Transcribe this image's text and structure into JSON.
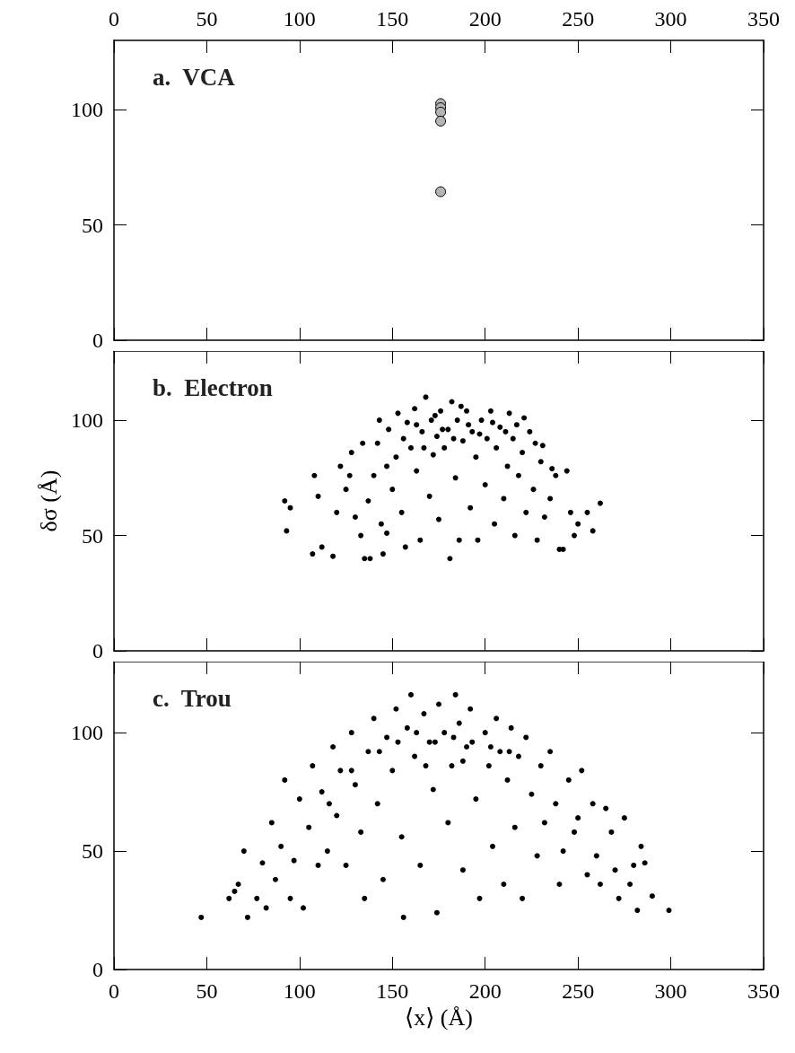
{
  "chart_data": [
    {
      "type": "scatter",
      "title": "a.  VCA",
      "marker": "circle",
      "xlim": [
        0,
        350
      ],
      "xticks": [
        0,
        50,
        100,
        150,
        200,
        250,
        300,
        350
      ],
      "x2lim": [
        0,
        350
      ],
      "x2ticks": [
        0,
        50,
        100,
        150,
        200,
        250,
        300,
        350
      ],
      "ylim": [
        0,
        130
      ],
      "yticks": [
        0,
        50,
        100
      ],
      "tick_labels": "y",
      "series": [
        {
          "color": "#b4b4b4",
          "x": [
            176,
            176,
            176,
            176,
            176
          ],
          "values": [
            102.6,
            100.8,
            98.9,
            95,
            64.4
          ]
        }
      ]
    },
    {
      "type": "scatter",
      "title": "b.  Electron",
      "ylabel": "δσ (Å)",
      "marker": "circle",
      "xlim": [
        0,
        350
      ],
      "xticks": [
        0,
        50,
        100,
        150,
        200,
        250,
        300,
        350
      ],
      "ylim": [
        0,
        130
      ],
      "yticks": [
        0,
        50,
        100
      ],
      "tick_labels": "y",
      "series": [
        {
          "color": "#000000",
          "x": [
            92,
            93,
            95,
            107,
            108,
            118,
            110,
            112,
            122,
            125,
            128,
            130,
            133,
            135,
            138,
            137,
            140,
            142,
            144,
            145,
            147,
            148,
            150,
            152,
            153,
            155,
            157,
            158,
            160,
            162,
            163,
            165,
            166,
            168,
            170,
            171,
            172,
            174,
            175,
            176,
            178,
            180,
            181,
            182,
            184,
            185,
            186,
            188,
            190,
            192,
            193,
            195,
            196,
            198,
            200,
            201,
            203,
            205,
            206,
            208,
            210,
            212,
            213,
            215,
            216,
            218,
            220,
            222,
            224,
            226,
            228,
            230,
            232,
            235,
            238,
            240,
            242,
            244,
            246,
            248,
            250,
            255,
            258,
            262,
            120,
            127,
            134,
            143,
            147,
            156,
            163,
            167,
            173,
            177,
            183,
            187,
            191,
            197,
            204,
            211,
            217,
            221,
            227,
            231,
            236
          ],
          "values": [
            65,
            52,
            62,
            42,
            76,
            41,
            67,
            45,
            80,
            70,
            86,
            58,
            50,
            40,
            40,
            65,
            76,
            90,
            55,
            42,
            51,
            96,
            70,
            84,
            103,
            60,
            45,
            99,
            88,
            105,
            78,
            48,
            95,
            110,
            67,
            100,
            85,
            93,
            57,
            104,
            88,
            96,
            40,
            108,
            75,
            100,
            48,
            91,
            104,
            62,
            95,
            84,
            48,
            100,
            72,
            92,
            104,
            55,
            88,
            97,
            66,
            80,
            103,
            92,
            50,
            76,
            86,
            60,
            95,
            70,
            48,
            82,
            58,
            66,
            76,
            44,
            44,
            78,
            60,
            50,
            55,
            60,
            52,
            64,
            60,
            76,
            90,
            100,
            80,
            92,
            98,
            88,
            102,
            96,
            92,
            106,
            98,
            94,
            99,
            95,
            98,
            101,
            90,
            89,
            79
          ]
        }
      ]
    },
    {
      "type": "scatter",
      "title": "c.  Trou",
      "xlabel": "⟨x⟩ (Å)",
      "marker": "circle",
      "xlim": [
        0,
        350
      ],
      "xticks": [
        0,
        50,
        100,
        150,
        200,
        250,
        300,
        350
      ],
      "ylim": [
        0,
        130
      ],
      "yticks": [
        0,
        50,
        100
      ],
      "series": [
        {
          "color": "#000000",
          "x": [
            47,
            62,
            65,
            67,
            70,
            72,
            77,
            80,
            82,
            85,
            87,
            90,
            92,
            95,
            97,
            100,
            102,
            105,
            107,
            110,
            112,
            115,
            118,
            120,
            122,
            125,
            128,
            130,
            133,
            135,
            137,
            140,
            142,
            145,
            147,
            150,
            152,
            155,
            156,
            158,
            160,
            162,
            165,
            167,
            170,
            172,
            174,
            175,
            178,
            180,
            182,
            184,
            186,
            188,
            190,
            192,
            195,
            197,
            200,
            202,
            204,
            206,
            208,
            210,
            212,
            214,
            216,
            218,
            220,
            222,
            225,
            228,
            230,
            232,
            235,
            238,
            240,
            242,
            245,
            248,
            250,
            252,
            255,
            258,
            260,
            262,
            265,
            268,
            270,
            272,
            275,
            278,
            280,
            282,
            284,
            286,
            290,
            299,
            143,
            153,
            163,
            173,
            183,
            193,
            203,
            213,
            168,
            188,
            128,
            116
          ],
          "values": [
            22,
            30,
            33,
            36,
            50,
            22,
            30,
            45,
            26,
            62,
            38,
            52,
            80,
            30,
            46,
            72,
            26,
            60,
            86,
            44,
            75,
            50,
            94,
            65,
            84,
            44,
            100,
            78,
            58,
            30,
            92,
            106,
            70,
            38,
            98,
            84,
            110,
            56,
            22,
            102,
            116,
            90,
            44,
            108,
            96,
            76,
            24,
            112,
            100,
            62,
            86,
            116,
            104,
            42,
            94,
            110,
            72,
            30,
            100,
            86,
            52,
            106,
            92,
            36,
            80,
            102,
            60,
            90,
            30,
            98,
            74,
            48,
            86,
            62,
            92,
            70,
            36,
            50,
            80,
            58,
            64,
            84,
            40,
            70,
            48,
            36,
            68,
            58,
            42,
            30,
            64,
            36,
            44,
            25,
            52,
            45,
            31,
            25,
            92,
            96,
            100,
            96,
            98,
            96,
            94,
            92,
            86,
            88,
            84,
            70
          ]
        }
      ]
    }
  ]
}
